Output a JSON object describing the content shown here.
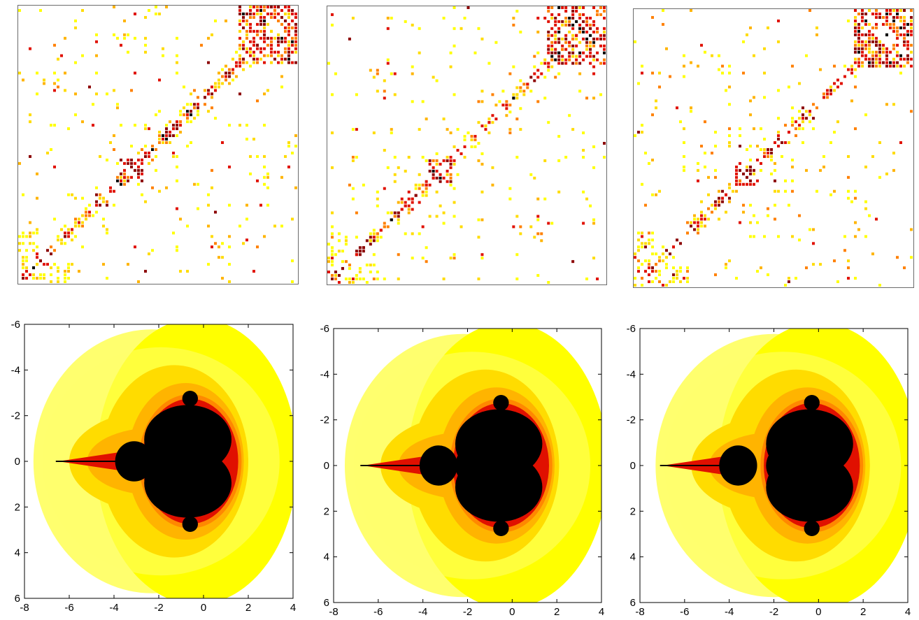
{
  "palette": {
    "background": "#ffffff",
    "light_yellow": "#ffff6e",
    "yellow": "#ffff00",
    "gold": "#ffdc00",
    "amber": "#ffb400",
    "orange": "#ff8000",
    "red": "#e01000",
    "dark_red": "#8b0000",
    "black": "#000000"
  },
  "matrix_panels": [
    {
      "id": "matrix-1"
    },
    {
      "id": "matrix-2"
    },
    {
      "id": "matrix-3"
    }
  ],
  "fractal_panels": [
    {
      "id": "fractal-1",
      "x_ticks": [
        "-8",
        "-6",
        "-4",
        "-2",
        "0",
        "2",
        "4"
      ],
      "y_ticks": [
        "-6",
        "-4",
        "-2",
        "0",
        "2",
        "4",
        "6"
      ],
      "xlim": [
        -8,
        4
      ],
      "ylim": [
        -6,
        6
      ],
      "main_bulb_x": -0.7,
      "secondary_bulb_x": -3.4
    },
    {
      "id": "fractal-2",
      "x_ticks": [
        "-8",
        "-6",
        "-4",
        "-2",
        "0",
        "2",
        "4"
      ],
      "y_ticks": [
        "-6",
        "-4",
        "-2",
        "0",
        "2",
        "4",
        "6"
      ],
      "xlim": [
        -8,
        4
      ],
      "ylim": [
        -6,
        6
      ],
      "main_bulb_x": -0.6,
      "secondary_bulb_x": -3.6
    },
    {
      "id": "fractal-3",
      "x_ticks": [
        "-8",
        "-6",
        "-4",
        "-2",
        "0",
        "2",
        "4"
      ],
      "y_ticks": [
        "-6",
        "-4",
        "-2",
        "0",
        "2",
        "4",
        "6"
      ],
      "xlim": [
        -8,
        4
      ],
      "ylim": [
        -6,
        6
      ],
      "main_bulb_x": -0.4,
      "secondary_bulb_x": -3.9
    }
  ]
}
